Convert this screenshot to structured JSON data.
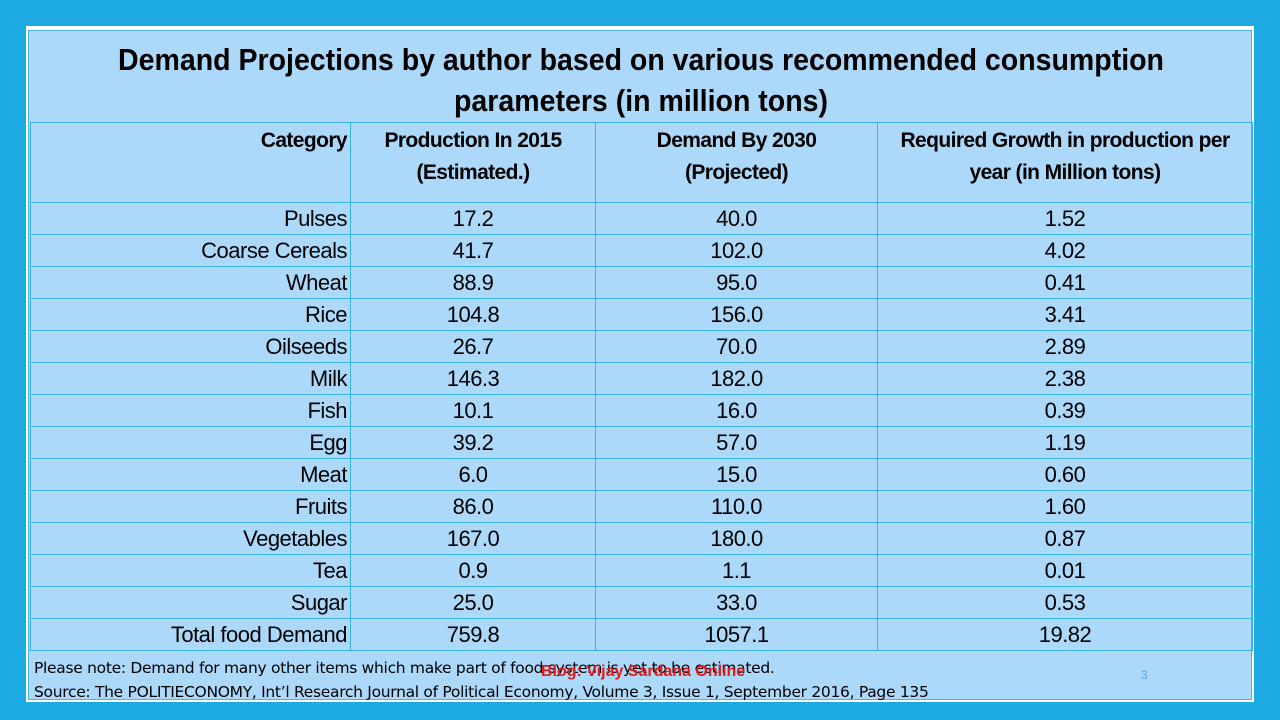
{
  "title": {
    "line1": "Demand Projections by author based on various recommended consumption",
    "line2": "parameters (in million tons)"
  },
  "table": {
    "headers": {
      "category": "Category",
      "production_line1": "Production In 2015",
      "production_line2": "(Estimated.)",
      "demand_line1": "Demand By 2030",
      "demand_line2": "(Projected)",
      "growth_line1": "Required Growth in production per",
      "growth_line2": "year (in Million tons)"
    },
    "rows": [
      {
        "category": "Pulses",
        "production": "17.2",
        "demand": "40.0",
        "growth": "1.52"
      },
      {
        "category": "Coarse Cereals",
        "production": "41.7",
        "demand": "102.0",
        "growth": "4.02"
      },
      {
        "category": "Wheat",
        "production": "88.9",
        "demand": "95.0",
        "growth": "0.41"
      },
      {
        "category": "Rice",
        "production": "104.8",
        "demand": "156.0",
        "growth": "3.41"
      },
      {
        "category": "Oilseeds",
        "production": "26.7",
        "demand": "70.0",
        "growth": "2.89"
      },
      {
        "category": "Milk",
        "production": "146.3",
        "demand": "182.0",
        "growth": "2.38"
      },
      {
        "category": "Fish",
        "production": "10.1",
        "demand": "16.0",
        "growth": "0.39"
      },
      {
        "category": "Egg",
        "production": "39.2",
        "demand": "57.0",
        "growth": "1.19"
      },
      {
        "category": "Meat",
        "production": "6.0",
        "demand": "15.0",
        "growth": "0.60"
      },
      {
        "category": "Fruits",
        "production": "86.0",
        "demand": "110.0",
        "growth": "1.60"
      },
      {
        "category": "Vegetables",
        "production": "167.0",
        "demand": "180.0",
        "growth": "0.87"
      },
      {
        "category": "Tea",
        "production": "0.9",
        "demand": "1.1",
        "growth": "0.01"
      },
      {
        "category": "Sugar",
        "production": "25.0",
        "demand": "33.0",
        "growth": "0.53"
      },
      {
        "category": "Total food Demand",
        "production": "759.8",
        "demand": "1057.1",
        "growth": "19.82"
      }
    ]
  },
  "note": "Please note: Demand for many other items which make part of food system is yet to be estimated.",
  "source": "Source: The POLITIECONOMY, Int’l Research Journal of Political Economy, Volume 3, Issue 1, September 2016, Page 135",
  "watermark": "Blog: Vijay Sardana Online",
  "page_number": "3",
  "colors": {
    "frame": "#1da9e1",
    "panel": "#acd8f9",
    "grid_line": "#38b1e3",
    "watermark": "#e01b1b"
  }
}
